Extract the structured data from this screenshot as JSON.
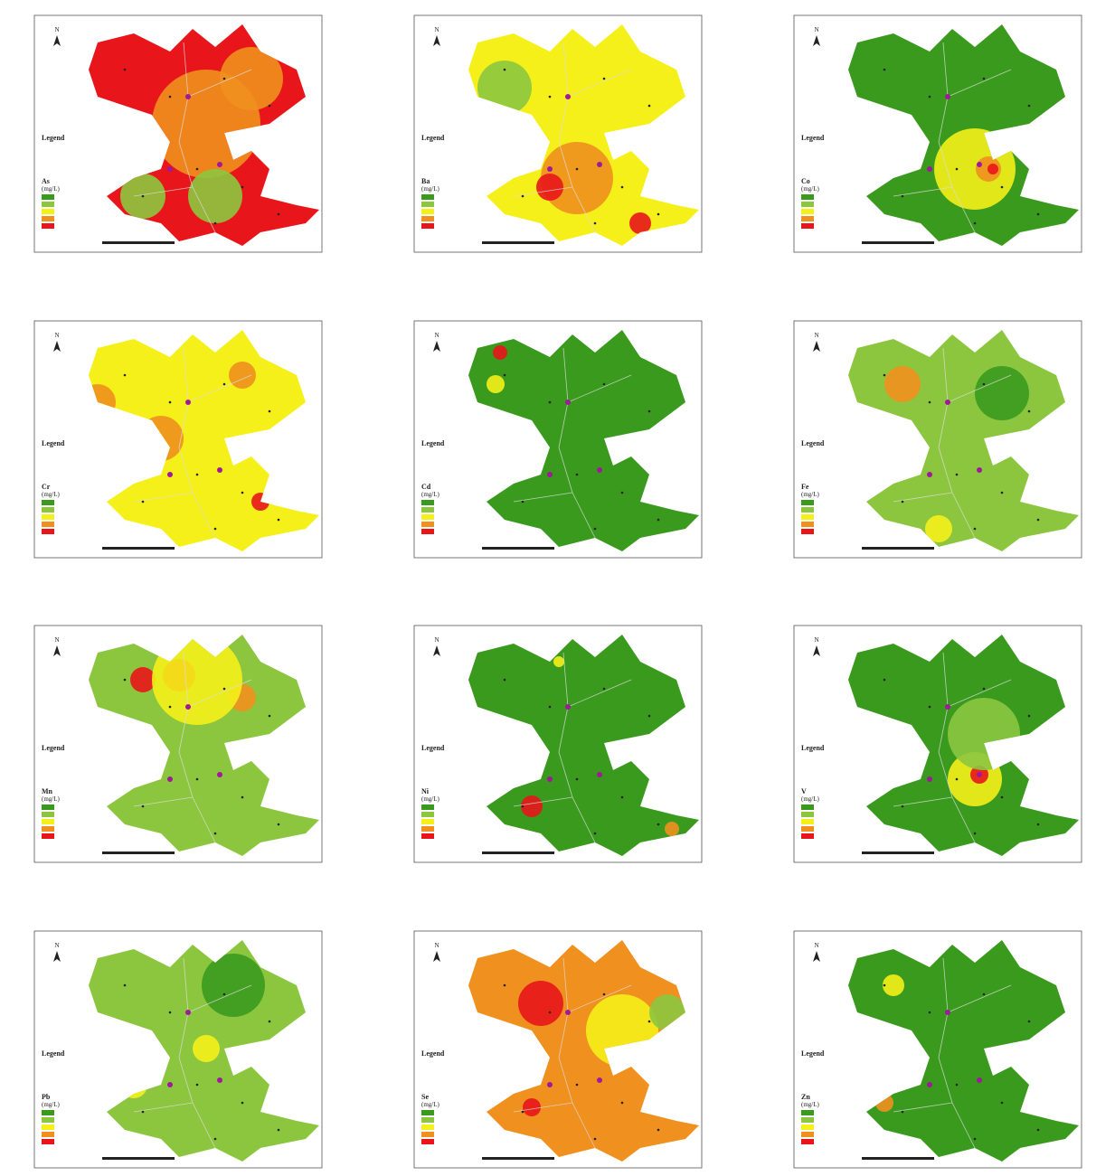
{
  "panels": [
    {
      "element": "As",
      "legend_title": "Legend",
      "unit": "(mg/L)",
      "north": "N"
    },
    {
      "element": "Ba",
      "legend_title": "Legend",
      "unit": "(mg/L)",
      "north": "N"
    },
    {
      "element": "Co",
      "legend_title": "Legend",
      "unit": "(mg/L)",
      "north": "N"
    },
    {
      "element": "Cr",
      "legend_title": "Legend",
      "unit": "(mg/L)",
      "north": "N"
    },
    {
      "element": "Cd",
      "legend_title": "Legend",
      "unit": "(mg/L)",
      "north": "N"
    },
    {
      "element": "Fe",
      "legend_title": "Legend",
      "unit": "(mg/L)",
      "north": "N"
    },
    {
      "element": "Mn",
      "legend_title": "Legend",
      "unit": "(mg/L)",
      "north": "N"
    },
    {
      "element": "Ni",
      "legend_title": "Legend",
      "unit": "(mg/L)",
      "north": "N"
    },
    {
      "element": "V",
      "legend_title": "Legend",
      "unit": "(mg/L)",
      "north": "N"
    },
    {
      "element": "Pb",
      "legend_title": "Legend",
      "unit": "(mg/L)",
      "north": "N"
    },
    {
      "element": "Se",
      "legend_title": "Legend",
      "unit": "(mg/L)",
      "north": "N"
    },
    {
      "element": "Zn",
      "legend_title": "Legend",
      "unit": "(mg/L)",
      "north": "N"
    }
  ]
}
